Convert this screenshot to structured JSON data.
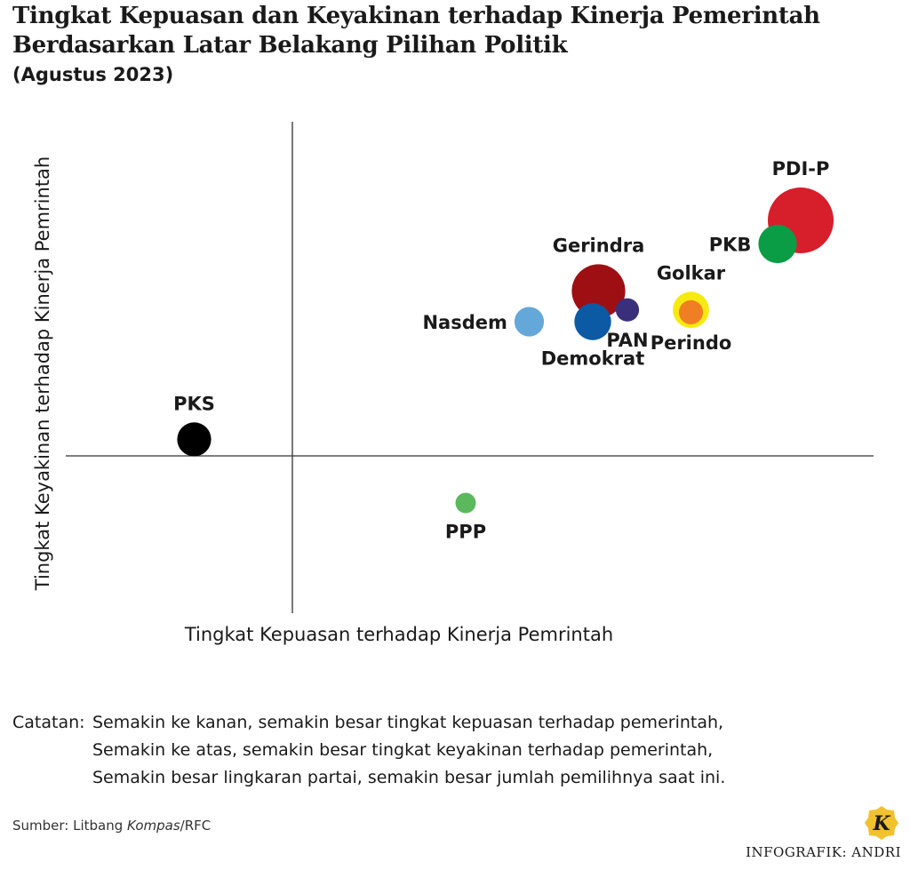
{
  "title_line1": "Tingkat Kepuasan dan Keyakinan terhadap Kinerja Pemerintah",
  "title_line2": "Berdasarkan Latar Belakang Pilihan Politik",
  "subtitle": "(Agustus 2023)",
  "chart_data": {
    "type": "scatter",
    "xlabel": "Tingkat Kepuasan terhadap Kinerja Pemrintah",
    "ylabel": "Tingkat Keyakinan terhadap Kinerja Pemrintah",
    "grid": false,
    "axis_ticks": false,
    "points": [
      {
        "name": "PDI-P",
        "x": 0.88,
        "y": 1.0,
        "size": 1.0,
        "color": "#d71e2b",
        "label_pos": "top"
      },
      {
        "name": "PKB",
        "x": 0.84,
        "y": 0.9,
        "size": 0.3,
        "color": "#0b9c46",
        "label_pos": "left"
      },
      {
        "name": "Gerindra",
        "x": 0.53,
        "y": 0.7,
        "size": 0.64,
        "color": "#9e0f14",
        "label_pos": "top"
      },
      {
        "name": "Golkar",
        "x": 0.69,
        "y": 0.62,
        "size": 0.26,
        "color": "#f7ea10",
        "label_pos": "top"
      },
      {
        "name": "Perindo",
        "x": 0.69,
        "y": 0.61,
        "size": 0.08,
        "color": "#f07f24",
        "label_pos": "bottom"
      },
      {
        "name": "PAN",
        "x": 0.58,
        "y": 0.62,
        "size": 0.07,
        "color": "#3a2f7a",
        "label_pos": "bottom"
      },
      {
        "name": "Nasdem",
        "x": 0.41,
        "y": 0.57,
        "size": 0.15,
        "color": "#64a7d9",
        "label_pos": "left"
      },
      {
        "name": "Demokrat",
        "x": 0.52,
        "y": 0.57,
        "size": 0.27,
        "color": "#0b5aa3",
        "label_pos": "bottom"
      },
      {
        "name": "PKS",
        "x": -0.17,
        "y": 0.07,
        "size": 0.22,
        "color": "#000000",
        "label_pos": "top"
      },
      {
        "name": "PPP",
        "x": 0.3,
        "y": -0.2,
        "size": 0.04,
        "color": "#5cb85c",
        "label_pos": "bottom"
      }
    ]
  },
  "notes": {
    "label": "Catatan:",
    "line1": "Semakin ke kanan, semakin besar tingkat kepuasan terhadap pemerintah,",
    "line2": "Semakin ke atas, semakin besar tingkat keyakinan terhadap pemerintah,",
    "line3": "Semakin besar lingkaran partai, semakin besar jumlah pemilihnya saat ini."
  },
  "source_prefix": "Sumber: Litbang ",
  "source_em": "Kompas",
  "source_suffix": "/RFC",
  "credit": "INFOGRAFIK: ANDRI",
  "logo_letter": "K",
  "colors": {
    "logo_gold": "#f2c12e",
    "axis": "#333333"
  }
}
